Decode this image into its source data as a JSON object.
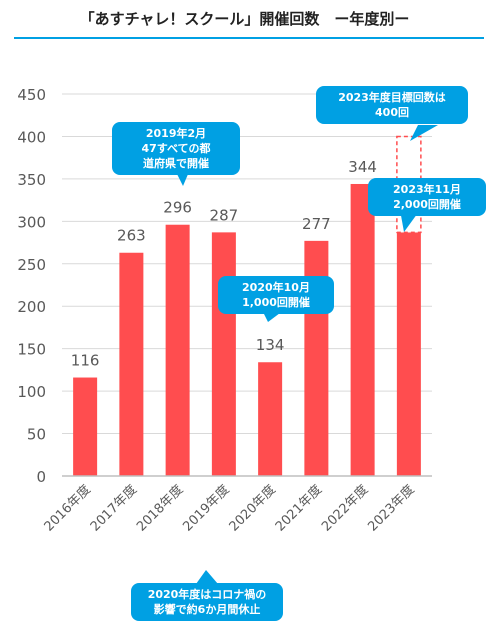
{
  "title": "「あすチャレ！スクール」開催回数　ー年度別ー",
  "colors": {
    "bar": "#ff4d4f",
    "accent": "#00a0e3",
    "axis": "#595959",
    "grid": "#d9d9d9"
  },
  "chart_data": {
    "type": "bar",
    "categories": [
      "2016年度",
      "2017年度",
      "2018年度",
      "2019年度",
      "2020年度",
      "2021年度",
      "2022年度",
      "2023年度"
    ],
    "values": [
      116,
      263,
      296,
      287,
      134,
      277,
      344,
      287
    ],
    "data_labels": [
      "116",
      "263",
      "296",
      "287",
      "134",
      "277",
      "344",
      ""
    ],
    "ylim": [
      0,
      450
    ],
    "yticks": [
      0,
      50,
      100,
      150,
      200,
      250,
      300,
      350,
      400,
      450
    ],
    "target": {
      "category": "2023年度",
      "value": 400
    },
    "grid": true,
    "annotations": [
      "2019年2月\n47すべての都\n道府県で開催",
      "2020年10月\n1,000回開催",
      "2023年度目標回数は\n400回",
      "2023年11月\n2,000回開催",
      "2020年度はコロナ禍の\n影響で約6か月間休止"
    ]
  }
}
